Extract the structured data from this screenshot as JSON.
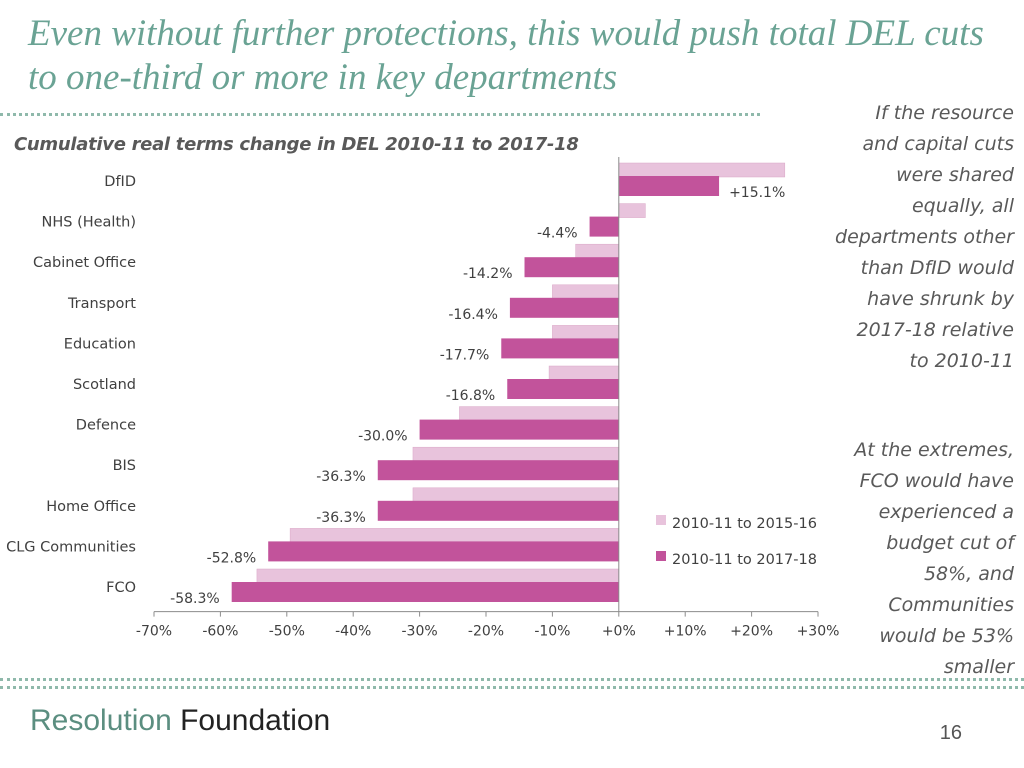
{
  "slide": {
    "title": "Even without further protections, this would push total DEL cuts to one-third or more in key departments",
    "note_1": "If the resource and capital cuts were shared equally, all departments other than DfID would have shrunk by 2017-18 relative to 2010-11",
    "note_2": "At the extremes, FCO would have experienced a budget cut of 58%, and Communities would be 53% smaller",
    "brand_part_1": "Resolution",
    "brand_part_2": "Foundation",
    "page_number": "16"
  },
  "colors": {
    "accent": "#6aa394",
    "series_light": "#e8c3dc",
    "series_dark": "#c2539b",
    "text": "#595959"
  },
  "chart_data": {
    "type": "bar",
    "orientation": "horizontal",
    "title": "Cumulative real terms change in DEL 2010-11 to 2017-18",
    "categories": [
      "DfID",
      "NHS (Health)",
      "Cabinet Office",
      "Transport",
      "Education",
      "Scotland",
      "Defence",
      "BIS",
      "Home Office",
      "CLG Communities",
      "FCO"
    ],
    "series": [
      {
        "name": "2010-11 to 2015-16",
        "values": [
          25.0,
          4.0,
          -6.5,
          -10.0,
          -10.0,
          -10.5,
          -24.0,
          -31.0,
          -31.0,
          -49.5,
          -54.5
        ]
      },
      {
        "name": "2010-11 to 2017-18",
        "values": [
          15.1,
          -4.4,
          -14.2,
          -16.4,
          -17.7,
          -16.8,
          -30.0,
          -36.3,
          -36.3,
          -52.8,
          -58.3
        ]
      }
    ],
    "data_labels": [
      "+15.1%",
      "-4.4%",
      "-14.2%",
      "-16.4%",
      "-17.7%",
      "-16.8%",
      "-30.0%",
      "-36.3%",
      "-36.3%",
      "-52.8%",
      "-58.3%"
    ],
    "xlim": [
      -70,
      30
    ],
    "xticks": [
      -70,
      -60,
      -50,
      -40,
      -30,
      -20,
      -10,
      0,
      10,
      20,
      30
    ],
    "xtick_labels": [
      "-70%",
      "-60%",
      "-50%",
      "-40%",
      "-30%",
      "-20%",
      "-10%",
      "+0%",
      "+10%",
      "+20%",
      "+30%"
    ],
    "legend_position": "bottom-right",
    "grid": false
  }
}
